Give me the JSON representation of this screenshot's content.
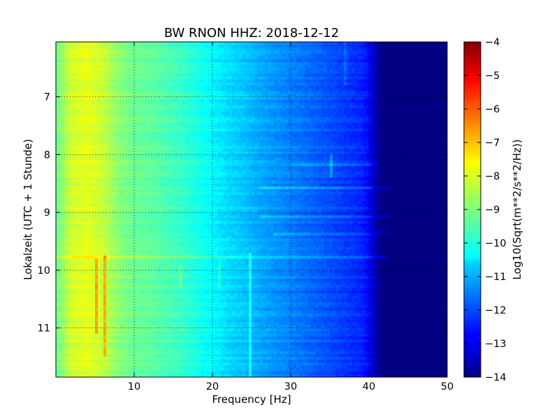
{
  "chart_data": {
    "type": "heatmap",
    "title": "BW RNON HHZ: 2018-12-12",
    "xlabel": "Frequency [Hz]",
    "ylabel": "Lokalzeit (UTC + 1 Stunde)",
    "xlim": [
      0,
      50
    ],
    "ylim": [
      11.85,
      6.05
    ],
    "y_inverted": true,
    "x_ticks": [
      10,
      20,
      30,
      40,
      50
    ],
    "y_ticks": [
      7,
      8,
      9,
      10,
      11
    ],
    "grid": true,
    "colormap": "jet",
    "colorbar": {
      "label": "Log10(Sqrt(m**2/s**2/Hz))",
      "range": [
        -14,
        -4
      ],
      "ticks": [
        -4,
        -5,
        -6,
        -7,
        -8,
        -9,
        -10,
        -11,
        -12,
        -13,
        -14
      ]
    },
    "spectrum_profile": {
      "frequency_hz": [
        0,
        2,
        4,
        6,
        8,
        10,
        12,
        14,
        16,
        18,
        20,
        22,
        24,
        26,
        28,
        30,
        32,
        34,
        36,
        38,
        39,
        40,
        41,
        42,
        44,
        46,
        48,
        50
      ],
      "level": [
        -9.2,
        -8.2,
        -8.0,
        -8.3,
        -8.9,
        -9.2,
        -9.3,
        -9.5,
        -9.7,
        -10.0,
        -10.3,
        -10.6,
        -10.8,
        -11.1,
        -11.3,
        -11.5,
        -11.7,
        -11.9,
        -12.1,
        -12.3,
        -12.4,
        -12.7,
        -13.7,
        -14.0,
        -14.0,
        -14.0,
        -14.0,
        -14.0
      ]
    },
    "features": [
      {
        "kind": "horizontal_band",
        "time_start": 9.76,
        "time_end": 9.8,
        "freq_end": 42,
        "delta": 0.7
      },
      {
        "kind": "horizontal_band",
        "time_start": 8.55,
        "time_end": 8.62,
        "freq_start": 26,
        "freq_end": 43,
        "delta": 0.5
      },
      {
        "kind": "horizontal_band",
        "time_start": 9.06,
        "time_end": 9.1,
        "freq_start": 26,
        "freq_end": 43,
        "delta": 0.5
      },
      {
        "kind": "horizontal_band",
        "time_start": 9.33,
        "time_end": 9.38,
        "freq_start": 28,
        "freq_end": 43,
        "delta": 0.4
      },
      {
        "kind": "horizontal_band",
        "time_start": 8.15,
        "time_end": 8.22,
        "freq_start": 30,
        "freq_end": 41,
        "delta": 0.4
      },
      {
        "kind": "vertical_line",
        "freq": 5.1,
        "time_start": 9.78,
        "time_end": 11.1,
        "delta": 1.3
      },
      {
        "kind": "vertical_line",
        "freq": 6.2,
        "time_start": 9.75,
        "time_end": 11.5,
        "delta": 1.4
      },
      {
        "kind": "vertical_line",
        "freq": 24.8,
        "time_start": 9.7,
        "time_end": 11.85,
        "delta": 0.8
      },
      {
        "kind": "vertical_line",
        "freq": 16.0,
        "time_start": 9.9,
        "time_end": 10.3,
        "delta": 0.5
      },
      {
        "kind": "vertical_line",
        "freq": 21.0,
        "time_start": 9.85,
        "time_end": 10.3,
        "delta": 0.5
      },
      {
        "kind": "vertical_line",
        "freq": 35.2,
        "time_start": 8.0,
        "time_end": 8.4,
        "delta": 0.7
      },
      {
        "kind": "vertical_line",
        "freq": 37.0,
        "time_start": 6.05,
        "time_end": 6.8,
        "delta": 0.4
      }
    ]
  }
}
